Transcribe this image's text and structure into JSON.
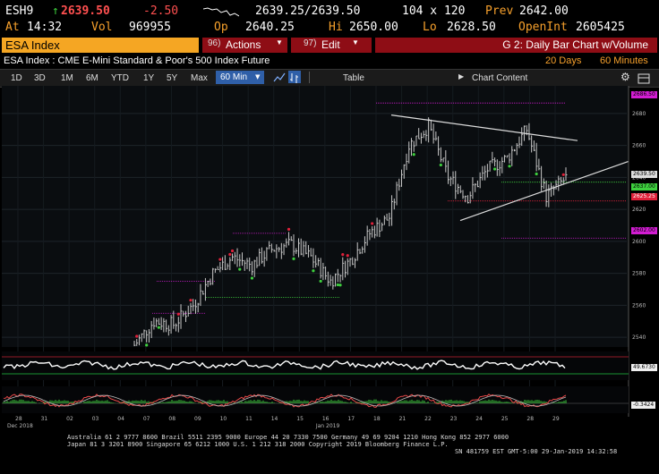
{
  "quote": {
    "ticker": "ESH9",
    "arrow": "↑",
    "last": "2639.50",
    "change": "-2.50",
    "bid_ask": "2639.25/2639.50",
    "size": "104 x 120",
    "prev_label": "Prev",
    "prev": "2642.00",
    "at_label": "At",
    "time": "14:32",
    "vol_label": "Vol",
    "vol": "969955",
    "op_label": "Op",
    "open": "2640.25",
    "hi_label": "Hi",
    "high": "2650.00",
    "lo_label": "Lo",
    "low": "2628.50",
    "oi_label": "OpenInt",
    "open_interest": "2605425"
  },
  "command": {
    "security": "ESA Index",
    "actions_num": "96)",
    "actions_label": "Actions",
    "edit_num": "97)",
    "edit_label": "Edit",
    "title": "G 2: Daily Bar Chart w/Volume"
  },
  "subtitle": {
    "description": "ESA Index : CME E-Mini Standard & Poor's 500 Index Future",
    "period": "20 Days",
    "interval": "60 Minutes"
  },
  "toolbar": {
    "ranges": [
      "1D",
      "3D",
      "1M",
      "6M",
      "YTD",
      "1Y",
      "5Y",
      "Max"
    ],
    "interval_select": "60 Min",
    "table_label": "Table",
    "chart_content_label": "Chart Content"
  },
  "price_tags": {
    "magenta_top": "2686.50",
    "last": "2639.50",
    "green": "2637.00",
    "red": "2625.25",
    "magenta_bottom": "2602.00",
    "osc1": "49.6730",
    "osc2": "-0.3424"
  },
  "colors": {
    "orange": "#f5a623",
    "header_red": "#8e0d15",
    "up_green": "#3ecf3e",
    "down_red": "#e0213a",
    "magenta": "#d21dd2"
  },
  "footer": {
    "line1": "Australia 61 2 9777 8600 Brazil 5511 2395 9000 Europe 44 20 7330 7500 Germany 49 69 9204 1210 Hong Kong 852 2977 6000",
    "line2": "Japan 81 3 3201 8900       Singapore 65 6212 1000       U.S. 1 212 318 2000       Copyright 2019 Bloomberg Finance L.P.",
    "line3": "SN 481759 EST  GMT-5:00 29-Jan-2019 14:32:58"
  },
  "chart_data": {
    "type": "bar",
    "title": "",
    "interval": "60 Minutes",
    "y_ticks": [
      2540,
      2560,
      2580,
      2600,
      2620,
      2640,
      2660,
      2680
    ],
    "ylim": [
      2535,
      2695
    ],
    "x_ticks": [
      "28",
      "31",
      "02",
      "03",
      "04",
      "07",
      "08",
      "09",
      "10",
      "11",
      "14",
      "15",
      "16",
      "17",
      "18",
      "21",
      "22",
      "23",
      "24",
      "25",
      "28",
      "29"
    ],
    "x_period_labels": [
      "Dec 2018",
      "Jan 2019"
    ],
    "daily_approx_close": [
      2535,
      2550,
      2548,
      2560,
      2580,
      2590,
      2585,
      2595,
      2598,
      2590,
      2575,
      2588,
      2605,
      2615,
      2660,
      2672,
      2640,
      2628,
      2645,
      2652,
      2670,
      2628,
      2639.5
    ],
    "osc1_last": 49.673,
    "osc1_levels": [
      100,
      0
    ],
    "osc2_last": -0.3424,
    "osc2_levels": [
      0
    ]
  }
}
